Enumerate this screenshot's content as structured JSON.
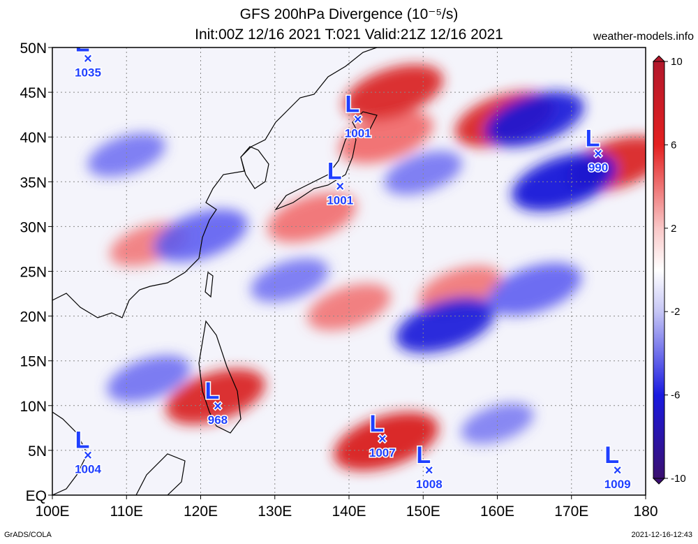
{
  "title_line1": "GFS 200hPa Divergence (10⁻⁵/s)",
  "title_line2": "Init:00Z 12/16 2021 T:021 Valid:21Z 12/16 2021",
  "site": "weather-models.info",
  "credit": "GrADS/COLA",
  "stamp": "2021-12-16-12:43",
  "map": {
    "lon_range": [
      100,
      180
    ],
    "lat_range": [
      0,
      50
    ],
    "x_ticks": [
      "100E",
      "110E",
      "120E",
      "130E",
      "140E",
      "150E",
      "160E",
      "170E",
      "180"
    ],
    "y_ticks": [
      "EQ",
      "5N",
      "10N",
      "15N",
      "20N",
      "25N",
      "30N",
      "35N",
      "40N",
      "45N",
      "50N"
    ]
  },
  "colorbar": {
    "labels": [
      "10",
      "6",
      "2",
      "-2",
      "-6",
      "-10"
    ],
    "colors": [
      "#b2182b",
      "#e32020",
      "#f26b6b",
      "#f9c7c7",
      "#ffffff",
      "#c6c6f5",
      "#6b6bf0",
      "#1a1ae0",
      "#1a1a8a",
      "#3b0f70"
    ]
  },
  "lows": [
    {
      "lon": 104.8,
      "lat": 48.8,
      "value": "1035"
    },
    {
      "lon": 141.2,
      "lat": 42.0,
      "value": "1001"
    },
    {
      "lon": 138.8,
      "lat": 34.5,
      "value": "1001"
    },
    {
      "lon": 173.6,
      "lat": 38.2,
      "value": "990"
    },
    {
      "lon": 122.3,
      "lat": 10.0,
      "value": "968"
    },
    {
      "lon": 104.8,
      "lat": 4.5,
      "value": "1004"
    },
    {
      "lon": 144.5,
      "lat": 6.3,
      "value": "1007"
    },
    {
      "lon": 150.8,
      "lat": 2.8,
      "value": "1008"
    },
    {
      "lon": 176.2,
      "lat": 2.8,
      "value": "1009"
    }
  ],
  "field_features": [
    {
      "lon": 135,
      "lat": 31,
      "sign": 1,
      "strength": 0.7
    },
    {
      "lon": 145,
      "lat": 40,
      "sign": 1,
      "strength": 0.8
    },
    {
      "lon": 146,
      "lat": 45,
      "sign": 1,
      "strength": 0.9
    },
    {
      "lon": 161,
      "lat": 42,
      "sign": 1,
      "strength": 0.9
    },
    {
      "lon": 176,
      "lat": 37,
      "sign": 1,
      "strength": 0.9
    },
    {
      "lon": 140,
      "lat": 21,
      "sign": 1,
      "strength": 0.6
    },
    {
      "lon": 155,
      "lat": 23,
      "sign": 1,
      "strength": 0.6
    },
    {
      "lon": 122,
      "lat": 11,
      "sign": 1,
      "strength": 0.9
    },
    {
      "lon": 145,
      "lat": 6,
      "sign": 1,
      "strength": 1.0
    },
    {
      "lon": 113,
      "lat": 28,
      "sign": 1,
      "strength": 0.5
    },
    {
      "lon": 169,
      "lat": 35,
      "sign": -1,
      "strength": 1.0
    },
    {
      "lon": 165,
      "lat": 42,
      "sign": -1,
      "strength": 0.9
    },
    {
      "lon": 153,
      "lat": 19,
      "sign": -1,
      "strength": 0.9
    },
    {
      "lon": 165,
      "lat": 23,
      "sign": -1,
      "strength": 0.8
    },
    {
      "lon": 120,
      "lat": 29,
      "sign": -1,
      "strength": 0.8
    },
    {
      "lon": 113,
      "lat": 13,
      "sign": -1,
      "strength": 0.6
    },
    {
      "lon": 110,
      "lat": 38,
      "sign": -1,
      "strength": 0.5
    },
    {
      "lon": 150,
      "lat": 36,
      "sign": -1,
      "strength": 0.5
    },
    {
      "lon": 132,
      "lat": 24,
      "sign": -1,
      "strength": 0.5
    },
    {
      "lon": 160,
      "lat": 8,
      "sign": -1,
      "strength": 0.4
    }
  ]
}
